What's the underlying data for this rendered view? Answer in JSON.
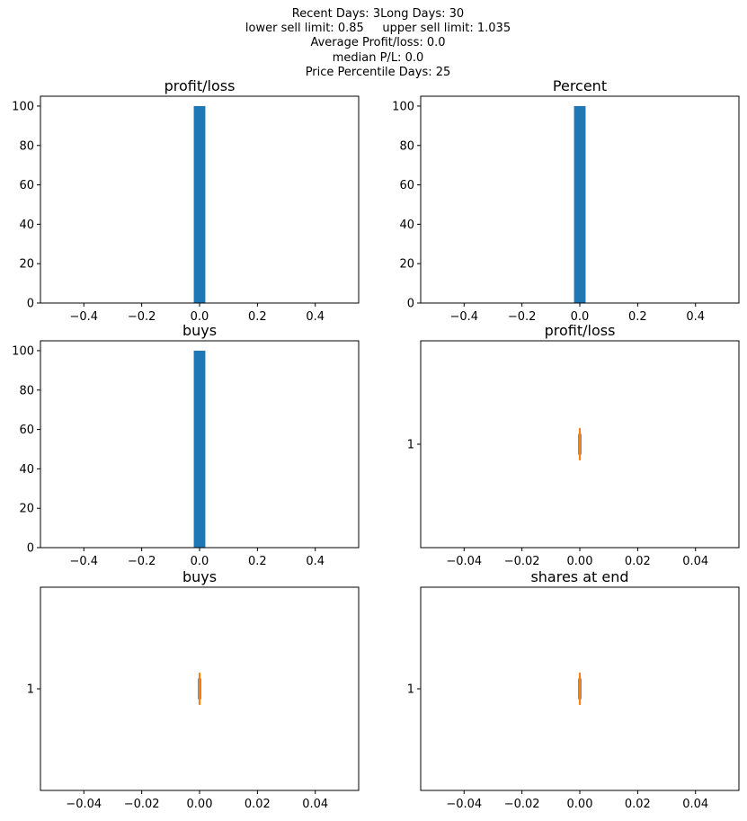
{
  "figure": {
    "suptitle_lines": [
      "Recent Days: 3Long Days: 30",
      "lower sell limit: 0.85     upper sell limit: 1.035",
      "Average Profit/loss: 0.0",
      "median P/L: 0.0",
      "Price Percentile Days: 25"
    ]
  },
  "chart_data": [
    {
      "type": "bar",
      "title": "profit/loss",
      "bin": [
        -0.02,
        0.02
      ],
      "values": [
        100
      ],
      "xlim": [
        -0.55,
        0.55
      ],
      "ylim": [
        0,
        105
      ],
      "xticks": [
        -0.4,
        -0.2,
        0.0,
        0.2,
        0.4
      ],
      "xtick_labels": [
        "−0.4",
        "−0.2",
        "0.0",
        "0.2",
        "0.4"
      ],
      "yticks": [
        0,
        20,
        40,
        60,
        80,
        100
      ],
      "ytick_labels": [
        "0",
        "20",
        "40",
        "60",
        "80",
        "100"
      ],
      "color": "#1f77b4"
    },
    {
      "type": "bar",
      "title": "Percent",
      "bin": [
        -0.02,
        0.02
      ],
      "values": [
        100
      ],
      "xlim": [
        -0.55,
        0.55
      ],
      "ylim": [
        0,
        105
      ],
      "xticks": [
        -0.4,
        -0.2,
        0.0,
        0.2,
        0.4
      ],
      "xtick_labels": [
        "−0.4",
        "−0.2",
        "0.0",
        "0.2",
        "0.4"
      ],
      "yticks": [
        0,
        20,
        40,
        60,
        80,
        100
      ],
      "ytick_labels": [
        "0",
        "20",
        "40",
        "60",
        "80",
        "100"
      ],
      "color": "#1f77b4"
    },
    {
      "type": "bar",
      "title": "buys",
      "bin": [
        -0.02,
        0.02
      ],
      "values": [
        100
      ],
      "xlim": [
        -0.55,
        0.55
      ],
      "ylim": [
        0,
        105
      ],
      "xticks": [
        -0.4,
        -0.2,
        0.0,
        0.2,
        0.4
      ],
      "xtick_labels": [
        "−0.4",
        "−0.2",
        "0.0",
        "0.2",
        "0.4"
      ],
      "yticks": [
        0,
        20,
        40,
        60,
        80,
        100
      ],
      "ytick_labels": [
        "0",
        "20",
        "40",
        "60",
        "80",
        "100"
      ],
      "color": "#1f77b4"
    },
    {
      "type": "boxplot",
      "title": "profit/loss",
      "orientation": "horizontal",
      "values": [
        0,
        0,
        0,
        0,
        0
      ],
      "xlim": [
        -0.055,
        0.055
      ],
      "xticks": [
        -0.04,
        -0.02,
        0.0,
        0.02,
        0.04
      ],
      "xtick_labels": [
        "−0.04",
        "−0.02",
        "0.00",
        "0.02",
        "0.04"
      ],
      "ytick_labels": [
        "1"
      ],
      "color": "#ff7f0e"
    },
    {
      "type": "boxplot",
      "title": "buys",
      "orientation": "horizontal",
      "values": [
        0,
        0,
        0,
        0,
        0
      ],
      "xlim": [
        -0.055,
        0.055
      ],
      "xticks": [
        -0.04,
        -0.02,
        0.0,
        0.02,
        0.04
      ],
      "xtick_labels": [
        "−0.04",
        "−0.02",
        "0.00",
        "0.02",
        "0.04"
      ],
      "ytick_labels": [
        "1"
      ],
      "color": "#ff7f0e"
    },
    {
      "type": "boxplot",
      "title": "shares at end",
      "orientation": "horizontal",
      "values": [
        0,
        0,
        0,
        0,
        0
      ],
      "xlim": [
        -0.055,
        0.055
      ],
      "xticks": [
        -0.04,
        -0.02,
        0.0,
        0.02,
        0.04
      ],
      "xtick_labels": [
        "−0.04",
        "−0.02",
        "0.00",
        "0.02",
        "0.04"
      ],
      "ytick_labels": [
        "1"
      ],
      "color": "#ff7f0e"
    }
  ]
}
